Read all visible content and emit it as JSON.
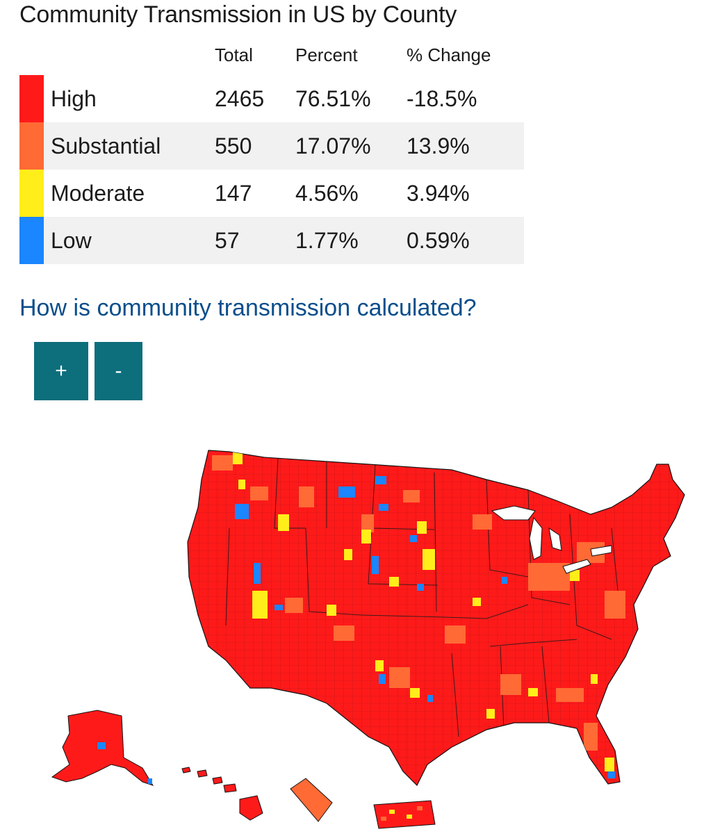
{
  "title": "Community Transmission in US by County",
  "table": {
    "headers": {
      "total": "Total",
      "percent": "Percent",
      "change": "% Change"
    },
    "rows": [
      {
        "label": "High",
        "total": "2465",
        "percent": "76.51%",
        "change": "-18.5%",
        "color": "#ff1a1a"
      },
      {
        "label": "Substantial",
        "total": "550",
        "percent": "17.07%",
        "change": "13.9%",
        "color": "#ff6a35"
      },
      {
        "label": "Moderate",
        "total": "147",
        "percent": "4.56%",
        "change": "3.94%",
        "color": "#ffee1a"
      },
      {
        "label": "Low",
        "total": "57",
        "percent": "1.77%",
        "change": "0.59%",
        "color": "#1a86ff"
      }
    ]
  },
  "link": {
    "text": "How is community transmission calculated?",
    "color": "#0a4e8c"
  },
  "zoom": {
    "in_label": "+",
    "out_label": "-",
    "color": "#0d6e7c"
  },
  "map": {
    "type": "county-choropleth",
    "base_color": "#ff1a1a"
  }
}
